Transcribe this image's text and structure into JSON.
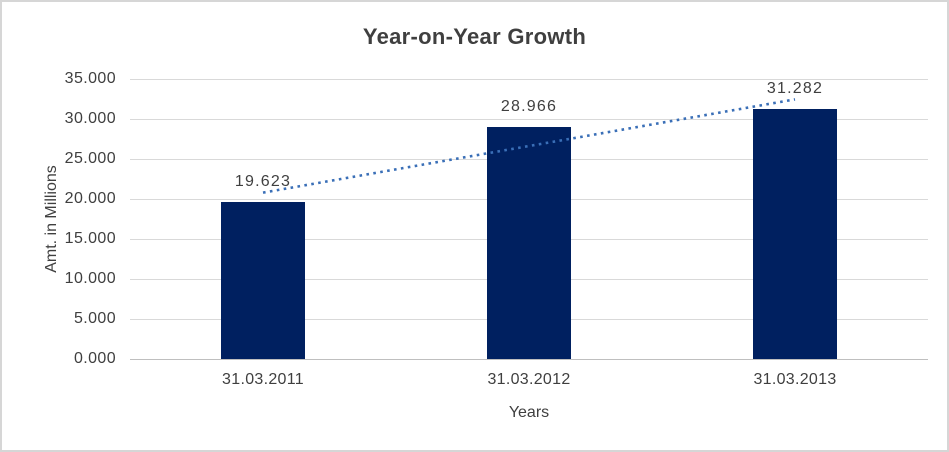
{
  "chart_data": {
    "type": "bar",
    "title": "Year-on-Year Growth",
    "categories": [
      "31.03.2011",
      "31.03.2012",
      "31.03.2013"
    ],
    "values": [
      19.623,
      28.966,
      31.282
    ],
    "value_labels": [
      "19.623",
      "28.966",
      "31.282"
    ],
    "xlabel": "Years",
    "ylabel": "Amt. in Millions",
    "ylim": [
      0,
      35
    ],
    "ytick_step": 5,
    "ytick_labels": [
      "0.000",
      "5.000",
      "10.000",
      "15.000",
      "20.000",
      "25.000",
      "30.000",
      "35.000"
    ],
    "grid": true,
    "legend": "none",
    "trendline": {
      "type": "linear",
      "dash": "dotted",
      "start_value": 20.794,
      "end_value": 32.453
    },
    "colors": {
      "bar": "#002060",
      "trendline": "#3A6FB7",
      "gridline": "#D9D9D9",
      "axis_line": "#BFBFBF",
      "text": "#3F3F3F",
      "border": "#D6D6D6",
      "background": "#FFFFFF"
    }
  }
}
